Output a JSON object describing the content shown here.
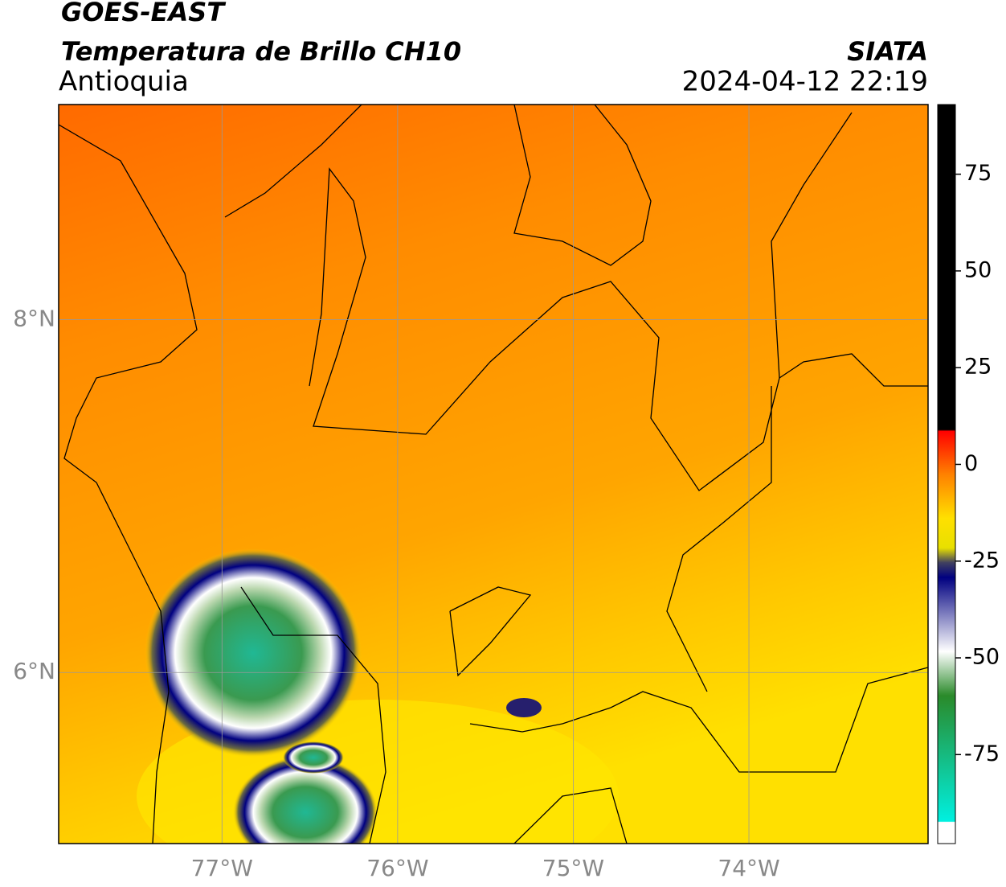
{
  "header": {
    "satellite": "GOES-EAST",
    "product": "Temperatura de Brillo CH10",
    "region": "Antioquia",
    "source": "SIATA",
    "datetime": "2024-04-12 22:19"
  },
  "map": {
    "xlim": [
      -77.93,
      -72.98
    ],
    "ylim": [
      5.03,
      9.22
    ],
    "xticks": [
      {
        "value": -77,
        "label": "77°W"
      },
      {
        "value": -76,
        "label": "76°W"
      },
      {
        "value": -75,
        "label": "75°W"
      },
      {
        "value": -74,
        "label": "74°W"
      }
    ],
    "yticks": [
      {
        "value": 8,
        "label": "8°N"
      },
      {
        "value": 6,
        "label": "6°N"
      }
    ]
  },
  "colorbar": {
    "lim": [
      -98,
      93
    ],
    "ticks": [
      75,
      50,
      25,
      0,
      -25,
      -50,
      -75
    ]
  }
}
